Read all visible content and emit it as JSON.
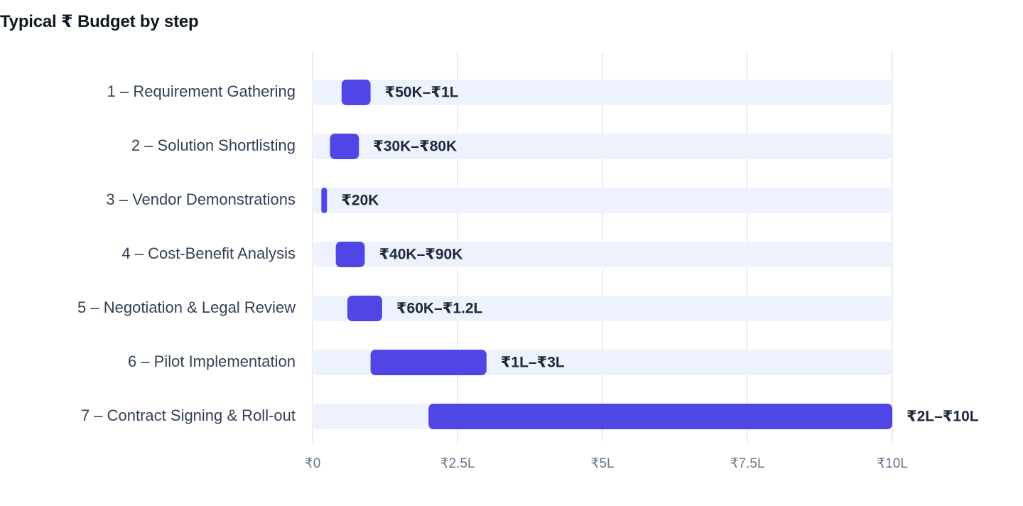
{
  "chart_data": {
    "type": "bar",
    "subtype": "range-bar",
    "orientation": "horizontal",
    "title": "Typical ₹ Budget by step",
    "xlabel": "",
    "ylabel": "",
    "unit": "₹ Lakh",
    "xlim": [
      0,
      10
    ],
    "grid": true,
    "legend": "none",
    "colors": {
      "bar": "#4f46e5",
      "track": "#eef2fd",
      "grid": "#e5e7eb"
    },
    "x_ticks": [
      {
        "value": 0,
        "label": "₹0"
      },
      {
        "value": 2.5,
        "label": "₹2.5L"
      },
      {
        "value": 5,
        "label": "₹5L"
      },
      {
        "value": 7.5,
        "label": "₹7.5L"
      },
      {
        "value": 10,
        "label": "₹10L"
      }
    ],
    "categories": [
      "1 – Requirement Gathering",
      "2 – Solution Shortlisting",
      "3 – Vendor Demonstrations",
      "4 – Cost-Benefit Analysis",
      "5 – Negotiation & Legal Review",
      "6 – Pilot Implementation",
      "7 – Contract Signing & Roll-out"
    ],
    "series": [
      {
        "low": [
          0.5,
          0.3,
          0.2,
          0.4,
          0.6,
          1,
          2
        ],
        "high": [
          1,
          0.8,
          0.2,
          0.9,
          1.2,
          3,
          10
        ],
        "labels": [
          "₹50K–₹1L",
          "₹30K–₹80K",
          "₹20K",
          "₹40K–₹90K",
          "₹60K–₹1.2L",
          "₹1L–₹3L",
          "₹2L–₹10L"
        ]
      }
    ]
  }
}
